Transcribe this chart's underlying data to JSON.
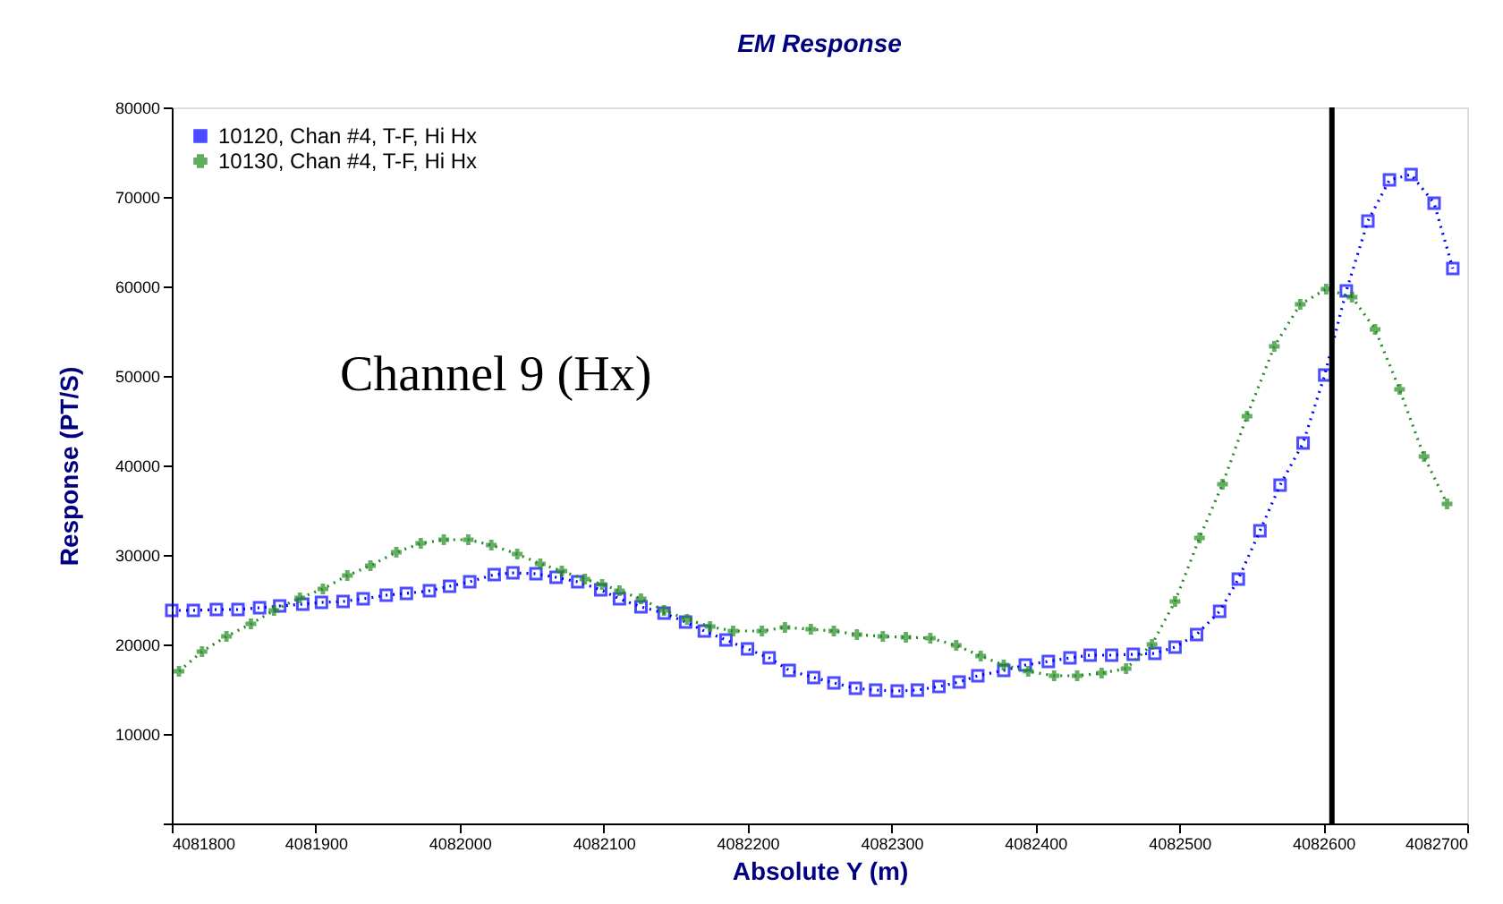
{
  "chart_data": {
    "type": "line",
    "title": "EM Response",
    "xlabel": "Absolute Y (m)",
    "ylabel": "Response (PT/S)",
    "xlim": [
      4081800,
      4082700
    ],
    "xticks": [
      4081800,
      4081900,
      4082000,
      4082100,
      4082200,
      4082300,
      4082400,
      4082500,
      4082600,
      4082700
    ],
    "ylim": [
      0,
      80000
    ],
    "yticks": [
      {
        "value": 0,
        "label": null
      },
      10000,
      20000,
      30000,
      40000,
      50000,
      60000,
      70000,
      80000
    ],
    "grid": false,
    "legend": "top left",
    "line_style": "dotted",
    "annotations": [
      "Channel 9 (Hx)"
    ],
    "ref_lines": [
      {
        "axis": "x",
        "value": 4082606,
        "color": "#000000"
      }
    ],
    "series": [
      {
        "name": "10120, Chan #4, T-F, Hi Hx",
        "color": "#0000ff",
        "marker": "square",
        "x": [
          4081800,
          4081815,
          4081831,
          4081846,
          4081861,
          4081875,
          4081891,
          4081904,
          4081919,
          4081933,
          4081949,
          4081963,
          4081979,
          4081993,
          4082007,
          4082024,
          4082037,
          4082053,
          4082067,
          4082082,
          4082098,
          4082111,
          4082126,
          4082142,
          4082157,
          4082170,
          4082185,
          4082200,
          4082215,
          4082229,
          4082246,
          4082260,
          4082275,
          4082289,
          4082304,
          4082318,
          4082333,
          4082347,
          4082360,
          4082378,
          4082393,
          4082409,
          4082424,
          4082438,
          4082453,
          4082468,
          4082483,
          4082497,
          4082512,
          4082528,
          4082541,
          4082556,
          4082570,
          4082586,
          4082601,
          4082616,
          4082631,
          4082646,
          4082661,
          4082677,
          4082690
        ],
        "values": [
          23800,
          23800,
          23900,
          23900,
          24100,
          24300,
          24500,
          24700,
          24800,
          25100,
          25500,
          25700,
          26000,
          26500,
          27000,
          27800,
          28000,
          27900,
          27500,
          27000,
          26100,
          25100,
          24200,
          23500,
          22500,
          21500,
          20500,
          19500,
          18500,
          17100,
          16300,
          15700,
          15100,
          14900,
          14800,
          14900,
          15300,
          15800,
          16500,
          17100,
          17700,
          18100,
          18500,
          18800,
          18800,
          18900,
          19000,
          19700,
          21100,
          23700,
          27300,
          32700,
          37800,
          42500,
          50100,
          59500,
          67300,
          71900,
          72500,
          69300,
          62000
        ]
      },
      {
        "name": "10130, Chan #4, T-F, Hi Hx",
        "color": "#228b22",
        "marker": "cross",
        "x": [
          4081805,
          4081821,
          4081838,
          4081855,
          4081871,
          4081889,
          4081905,
          4081922,
          4081938,
          4081956,
          4081973,
          4081989,
          4082006,
          4082022,
          4082040,
          4082056,
          4082071,
          4082087,
          4082099,
          4082111,
          4082126,
          4082142,
          4082158,
          4082174,
          4082190,
          4082210,
          4082226,
          4082244,
          4082260,
          4082276,
          4082294,
          4082310,
          4082327,
          4082345,
          4082362,
          4082378,
          4082395,
          4082413,
          4082429,
          4082446,
          4082463,
          4082481,
          4082497,
          4082514,
          4082530,
          4082547,
          4082566,
          4082584,
          4082602,
          4082620,
          4082636,
          4082653,
          4082670,
          4082686
        ],
        "values": [
          17000,
          19200,
          20900,
          22300,
          23800,
          25200,
          26200,
          27700,
          28800,
          30300,
          31300,
          31700,
          31700,
          31100,
          30100,
          29000,
          28200,
          27300,
          26700,
          26000,
          25100,
          23800,
          22800,
          22000,
          21500,
          21500,
          21900,
          21700,
          21500,
          21100,
          20900,
          20800,
          20700,
          19900,
          18700,
          17700,
          17000,
          16500,
          16500,
          16800,
          17300,
          20000,
          24800,
          31900,
          37900,
          45500,
          53300,
          58000,
          59700,
          58800,
          55200,
          48500,
          41000,
          35700
        ]
      }
    ]
  }
}
